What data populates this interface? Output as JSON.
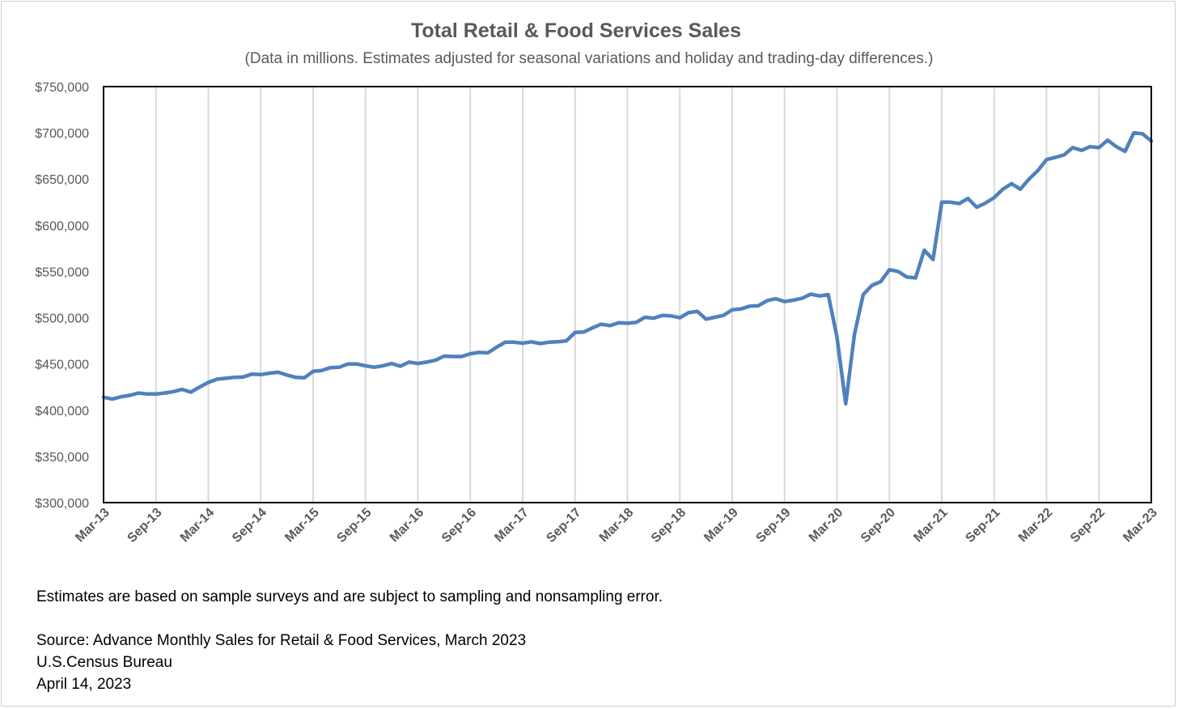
{
  "chart_data": {
    "type": "line",
    "title": "Total Retail & Food Services Sales",
    "subtitle": "(Data in millions. Estimates adjusted for seasonal variations and holiday and trading-day differences.)",
    "xlabel": "",
    "ylabel": "",
    "ylim": [
      300000,
      750000
    ],
    "yticks": [
      "$300,000",
      "$350,000",
      "$400,000",
      "$450,000",
      "$500,000",
      "$550,000",
      "$600,000",
      "$650,000",
      "$700,000",
      "$750,000"
    ],
    "xticks": [
      "Mar-13",
      "Sep-13",
      "Mar-14",
      "Sep-14",
      "Mar-15",
      "Sep-15",
      "Mar-16",
      "Sep-16",
      "Mar-17",
      "Sep-17",
      "Mar-18",
      "Sep-18",
      "Mar-19",
      "Sep-19",
      "Mar-20",
      "Sep-20",
      "Mar-21",
      "Sep-21",
      "Mar-22",
      "Sep-22",
      "Mar-23"
    ],
    "grid": "vertical",
    "legend": "none",
    "line_color": "#4f81bd",
    "series": [
      {
        "values": [
          414000,
          412000,
          414500,
          416000,
          418500,
          417500,
          417500,
          418500,
          420000,
          422500,
          419500,
          425000,
          430000,
          433500,
          434500,
          435500,
          436000,
          439000,
          438500,
          440000,
          441000,
          438000,
          435500,
          435000,
          442000,
          443000,
          446000,
          446500,
          450000,
          450000,
          448000,
          446500,
          448000,
          450500,
          447500,
          452000,
          450500,
          452000,
          454000,
          458500,
          458000,
          458000,
          461000,
          462500,
          462000,
          468000,
          473500,
          473500,
          472500,
          474000,
          472000,
          473500,
          474000,
          475000,
          484000,
          484500,
          489000,
          493000,
          491500,
          494500,
          494000,
          495000,
          500500,
          499500,
          502500,
          502000,
          500000,
          505500,
          507000,
          498500,
          500500,
          502500,
          508500,
          509500,
          512500,
          513000,
          518500,
          520500,
          517500,
          519000,
          521000,
          525500,
          523500,
          525000,
          479000,
          407000,
          482000,
          525000,
          535000,
          539000,
          552000,
          550000,
          544000,
          543000,
          573000,
          563000,
          625000,
          625000,
          623500,
          629000,
          619500,
          624000,
          630000,
          639000,
          645000,
          639000,
          650000,
          659000,
          671000,
          673500,
          676000,
          684000,
          681000,
          685000,
          684000,
          692000,
          685000,
          680000,
          700000,
          699000,
          691000
        ]
      }
    ]
  },
  "notes": {
    "disclaimer": "Estimates are based on sample surveys and are subject to sampling and nonsampling error.",
    "source": "Source: Advance Monthly Sales for Retail & Food Services, March 2023",
    "agency": "U.S.Census Bureau",
    "date": "April 14, 2023"
  }
}
